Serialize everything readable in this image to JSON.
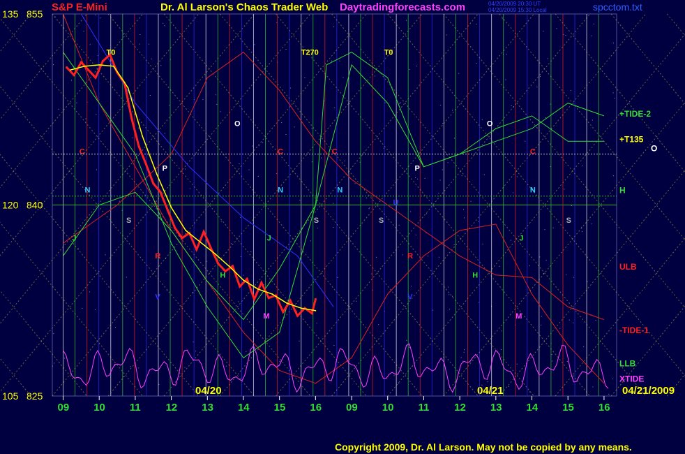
{
  "header": {
    "instrument": "S&P E-Mini",
    "title": "Dr. Al Larson's Chaos Trader Web",
    "site": "Daytradingforecasts.com",
    "file": "spcctom.txt",
    "timestamp1": "04/20/2009 20:30 UT",
    "timestamp2": "04/20/2009 15:30 Local"
  },
  "footer": {
    "copyright": "Copyright 2009, Dr. Al Larson. May not be copied by any means."
  },
  "dates": {
    "day1": "04/20",
    "day2": "04/21",
    "forecast_date": "04/21/2009"
  },
  "colors": {
    "background": "#000040",
    "price": "#ff2020",
    "yellow": "#ffff00",
    "green": "#33dd33",
    "red_line": "#dd2020",
    "blue_line": "#3030ff",
    "magenta": "#ff40ff",
    "white": "#ffffff"
  },
  "chart_data": {
    "type": "line",
    "title": "S&P E-Mini",
    "y_left_labels": [
      {
        "pair": [
          "135",
          "855"
        ],
        "value": 855
      },
      {
        "pair": [
          "120",
          "840"
        ],
        "value": 840
      },
      {
        "pair": [
          "105",
          "825"
        ],
        "value": 825
      }
    ],
    "ylim": [
      825,
      855
    ],
    "x_ticks": [
      "09",
      "10",
      "11",
      "12",
      "13",
      "14",
      "15",
      "16",
      "09",
      "10",
      "11",
      "12",
      "13",
      "14",
      "15",
      "16"
    ],
    "ref_levels": [
      {
        "name": "C level",
        "value": 844.0
      },
      {
        "name": "N level",
        "value": 840.7
      }
    ],
    "right_labels": [
      {
        "text": "+TIDE-2",
        "color": "#33dd33",
        "value": 847.2
      },
      {
        "text": "+T135",
        "color": "#ffff00",
        "value": 845.2
      },
      {
        "text": "O",
        "color": "#ffffff",
        "value": 844.5
      },
      {
        "text": "H",
        "color": "#33dd33",
        "value": 841.2
      },
      {
        "text": "ULB",
        "color": "#ff2020",
        "value": 835.2
      },
      {
        "text": "-TIDE-1",
        "color": "#ff2020",
        "value": 830.2
      },
      {
        "text": "LLB",
        "color": "#33dd33",
        "value": 827.6
      },
      {
        "text": "XTIDE",
        "color": "#ff40ff",
        "value": 826.4
      }
    ],
    "markers": [
      {
        "text": "T0",
        "color": "#ffff00",
        "x": 2.2,
        "y": 851.8
      },
      {
        "text": "T270",
        "color": "#ffff00",
        "x": 7.6,
        "y": 851.8
      },
      {
        "text": "T0",
        "color": "#ffff00",
        "x": 9.9,
        "y": 851.8
      },
      {
        "text": "C",
        "color": "#ff2020",
        "x": 1.45,
        "y": 844.0
      },
      {
        "text": "C",
        "color": "#ff2020",
        "x": 6.95,
        "y": 844.0
      },
      {
        "text": "C",
        "color": "#ff2020",
        "x": 8.45,
        "y": 844.0
      },
      {
        "text": "C",
        "color": "#ff2020",
        "x": 13.95,
        "y": 844.0
      },
      {
        "text": "O",
        "color": "#ffffff",
        "x": 5.75,
        "y": 846.2
      },
      {
        "text": "O",
        "color": "#ffffff",
        "x": 12.75,
        "y": 846.2
      },
      {
        "text": "P",
        "color": "#ffffff",
        "x": 3.75,
        "y": 842.7
      },
      {
        "text": "P",
        "color": "#ffffff",
        "x": 10.75,
        "y": 842.7
      },
      {
        "text": "N",
        "color": "#33ccff",
        "x": 1.6,
        "y": 841.0
      },
      {
        "text": "N",
        "color": "#33ccff",
        "x": 6.95,
        "y": 841.0
      },
      {
        "text": "N",
        "color": "#33ccff",
        "x": 8.6,
        "y": 841.0
      },
      {
        "text": "N",
        "color": "#33ccff",
        "x": 13.95,
        "y": 841.0
      },
      {
        "text": "S",
        "color": "#aaaaaa",
        "x": 2.75,
        "y": 838.6
      },
      {
        "text": "S",
        "color": "#aaaaaa",
        "x": 7.95,
        "y": 838.6
      },
      {
        "text": "S",
        "color": "#aaaaaa",
        "x": 9.75,
        "y": 838.6
      },
      {
        "text": "S",
        "color": "#aaaaaa",
        "x": 14.95,
        "y": 838.6
      },
      {
        "text": "R",
        "color": "#ff2020",
        "x": 3.55,
        "y": 835.8
      },
      {
        "text": "R",
        "color": "#ff2020",
        "x": 10.55,
        "y": 835.8
      },
      {
        "text": "H",
        "color": "#33dd33",
        "x": 5.35,
        "y": 834.3
      },
      {
        "text": "H",
        "color": "#33dd33",
        "x": 12.35,
        "y": 834.3
      },
      {
        "text": "M",
        "color": "#ff40ff",
        "x": 6.55,
        "y": 831.1
      },
      {
        "text": "M",
        "color": "#ff40ff",
        "x": 13.55,
        "y": 831.1
      },
      {
        "text": "J",
        "color": "#33dd33",
        "x": 1.25,
        "y": 837.2
      },
      {
        "text": "J",
        "color": "#33dd33",
        "x": 6.65,
        "y": 837.2
      },
      {
        "text": "J",
        "color": "#33dd33",
        "x": 13.65,
        "y": 837.2
      },
      {
        "text": "U",
        "color": "#3030ff",
        "x": 10.15,
        "y": 840.0
      },
      {
        "text": "V",
        "color": "#3030ff",
        "x": 3.55,
        "y": 832.6
      },
      {
        "text": "V",
        "color": "#3030ff",
        "x": 10.55,
        "y": 832.6
      }
    ],
    "series": [
      {
        "name": "Price",
        "color": "#ff2020",
        "points": [
          [
            1.1,
            850.8
          ],
          [
            1.3,
            850.2
          ],
          [
            1.5,
            851.2
          ],
          [
            1.7,
            850.6
          ],
          [
            1.9,
            850.0
          ],
          [
            2.1,
            851.3
          ],
          [
            2.3,
            851.8
          ],
          [
            2.5,
            850.4
          ],
          [
            2.7,
            849.6
          ],
          [
            2.9,
            846.8
          ],
          [
            3.1,
            844.6
          ],
          [
            3.3,
            843.2
          ],
          [
            3.5,
            841.7
          ],
          [
            3.7,
            841.0
          ],
          [
            3.9,
            839.6
          ],
          [
            4.1,
            838.2
          ],
          [
            4.3,
            837.4
          ],
          [
            4.5,
            837.8
          ],
          [
            4.7,
            836.5
          ],
          [
            4.9,
            837.9
          ],
          [
            5.1,
            836.6
          ],
          [
            5.3,
            835.4
          ],
          [
            5.5,
            834.8
          ],
          [
            5.7,
            835.2
          ],
          [
            5.9,
            833.6
          ],
          [
            6.1,
            834.2
          ],
          [
            6.3,
            832.6
          ],
          [
            6.5,
            833.9
          ],
          [
            6.7,
            832.7
          ],
          [
            6.9,
            832.9
          ],
          [
            7.1,
            831.6
          ],
          [
            7.3,
            832.5
          ],
          [
            7.5,
            831.3
          ],
          [
            7.7,
            831.9
          ],
          [
            7.9,
            831.5
          ],
          [
            8.0,
            832.6
          ]
        ]
      },
      {
        "name": "Avg",
        "color": "#ffff00",
        "points": [
          [
            1.2,
            850.6
          ],
          [
            1.6,
            850.9
          ],
          [
            2.0,
            851.0
          ],
          [
            2.4,
            850.9
          ],
          [
            2.8,
            849.2
          ],
          [
            3.2,
            845.4
          ],
          [
            3.6,
            842.4
          ],
          [
            4.0,
            839.8
          ],
          [
            4.4,
            838.0
          ],
          [
            4.8,
            837.1
          ],
          [
            5.2,
            836.2
          ],
          [
            5.6,
            835.2
          ],
          [
            6.0,
            834.1
          ],
          [
            6.4,
            833.4
          ],
          [
            6.8,
            833.0
          ],
          [
            7.2,
            832.3
          ],
          [
            7.6,
            831.9
          ],
          [
            8.0,
            831.7
          ]
        ]
      }
    ]
  }
}
